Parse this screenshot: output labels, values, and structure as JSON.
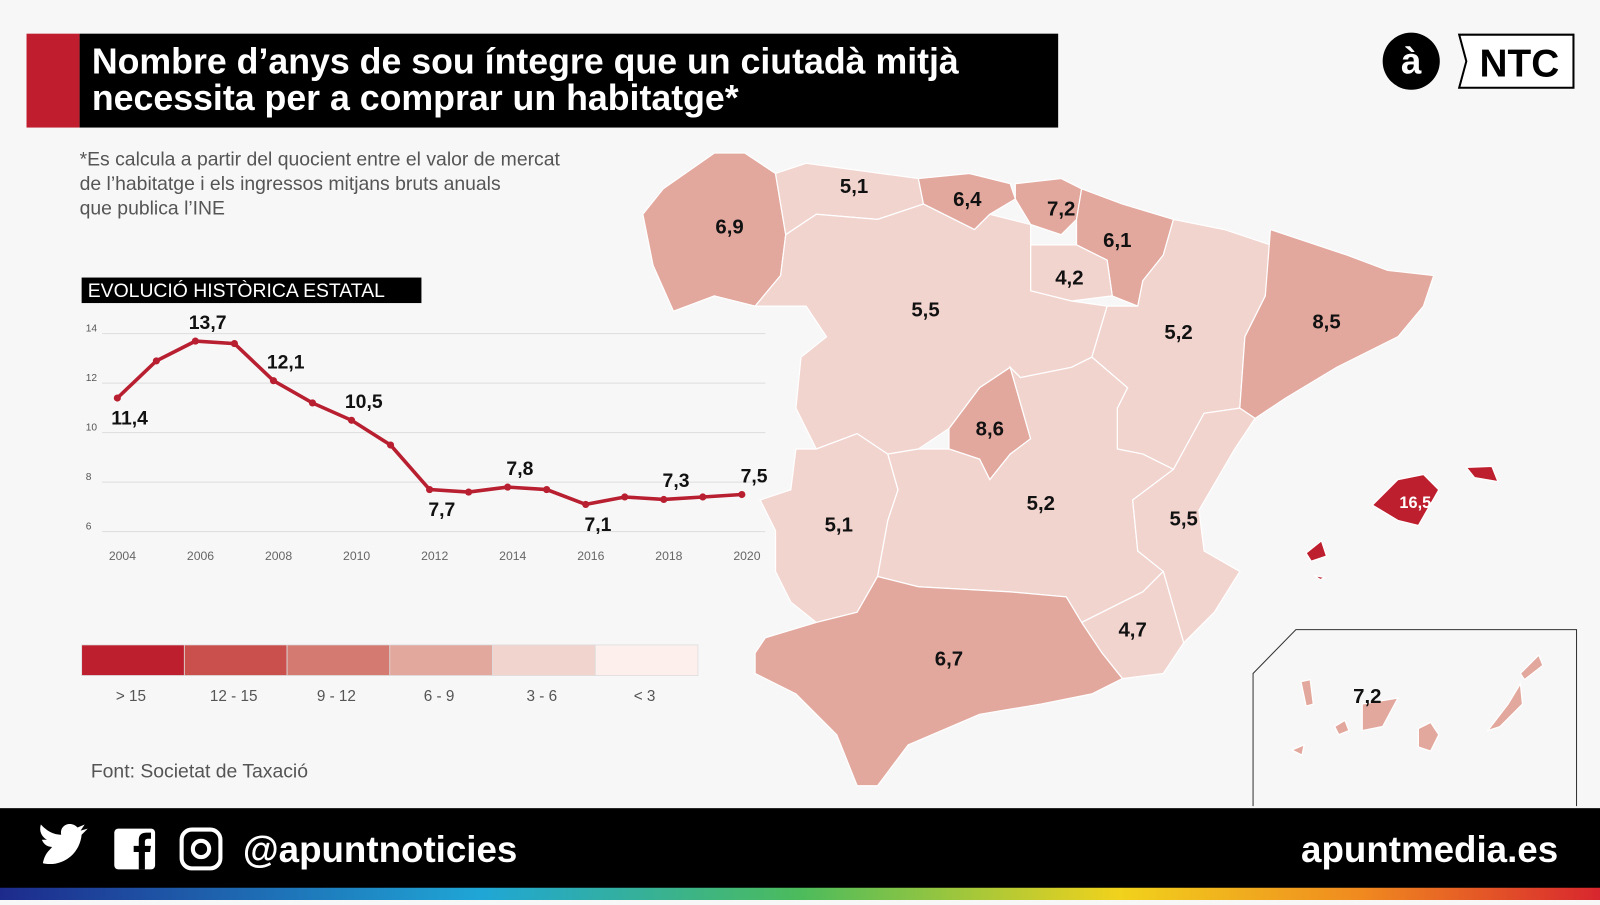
{
  "header": {
    "title_lines": [
      "Nombre d’anys de sou íntegre que un ciutadà mitjà",
      "necessita per a comprar un habitatge*"
    ],
    "logo_a": "à",
    "logo_ntc": "NTC"
  },
  "note_lines": [
    "*Es calcula a partir del quocient entre el valor de mercat",
    "de l’habitatge i els ingressos mitjans bruts anuals",
    "que publica l’INE"
  ],
  "chart_data": {
    "type": "line",
    "title": "EVOLUCIÓ HISTÒRICA ESTATAL",
    "x": [
      2004,
      2005,
      2006,
      2007,
      2008,
      2009,
      2010,
      2011,
      2012,
      2013,
      2014,
      2015,
      2016,
      2017,
      2018,
      2019,
      2020
    ],
    "series": [
      {
        "color": "#b81f30",
        "values": [
          11.4,
          12.9,
          13.7,
          13.6,
          12.1,
          11.2,
          10.5,
          9.5,
          7.7,
          7.6,
          7.8,
          7.7,
          7.1,
          7.4,
          7.3,
          7.4,
          7.5
        ],
        "value_labels": [
          "11,4",
          null,
          "13,7",
          null,
          "12,1",
          null,
          "10,5",
          null,
          "7,7",
          null,
          "7,8",
          null,
          "7,1",
          null,
          "7,3",
          null,
          "7,5"
        ]
      }
    ],
    "xlim": [
      2004,
      2020
    ],
    "xticks": [
      2004,
      2006,
      2008,
      2010,
      2012,
      2014,
      2016,
      2018,
      2020
    ],
    "ylim": [
      6,
      14
    ],
    "yticks": [
      6,
      8,
      10,
      12,
      14
    ],
    "grid": true
  },
  "map": {
    "values": [
      6.9,
      5.1,
      6.4,
      7.2,
      6.1,
      4.2,
      5.5,
      5.2,
      8.5,
      8.6,
      5.2,
      5.1,
      5.5,
      4.7,
      6.7,
      16.5,
      7.2
    ],
    "value_labels": [
      "6,9",
      "5,1",
      "6,4",
      "7,2",
      "6,1",
      "4,2",
      "5,5",
      "5,2",
      "8,5",
      "8,6",
      "5,2",
      "5,1",
      "5,5",
      "4,7",
      "6,7",
      "16,5",
      "7,2"
    ]
  },
  "legend": {
    "breaks": [
      15,
      12,
      9,
      6,
      3
    ],
    "labels": [
      "> 15",
      "12 - 15",
      "9 - 12",
      "6 - 9",
      "3 - 6",
      "< 3"
    ],
    "colors": [
      "#bd1f2f",
      "#c9504c",
      "#d47a71",
      "#e2a89e",
      "#f2d4cf",
      "#fcefec"
    ]
  },
  "source": "Font: Societat de Taxació",
  "footer": {
    "handle": "@apuntnoticies",
    "site": "apuntmedia.es"
  }
}
